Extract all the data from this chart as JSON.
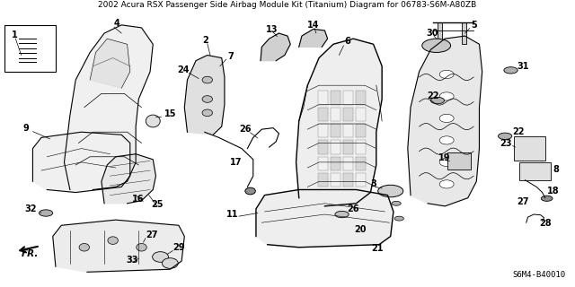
{
  "title": "2002 Acura RSX Passenger Side Airbag Module Kit (Titanium) Diagram for 06783-S6M-A80ZB",
  "diagram_code": "S6M4-B40010",
  "bg_color": "#ffffff",
  "border_color": "#000000",
  "text_color": "#000000",
  "font_size_parts": 7,
  "font_size_code": 6.5,
  "font_size_title": 6.5,
  "lw": 0.8
}
